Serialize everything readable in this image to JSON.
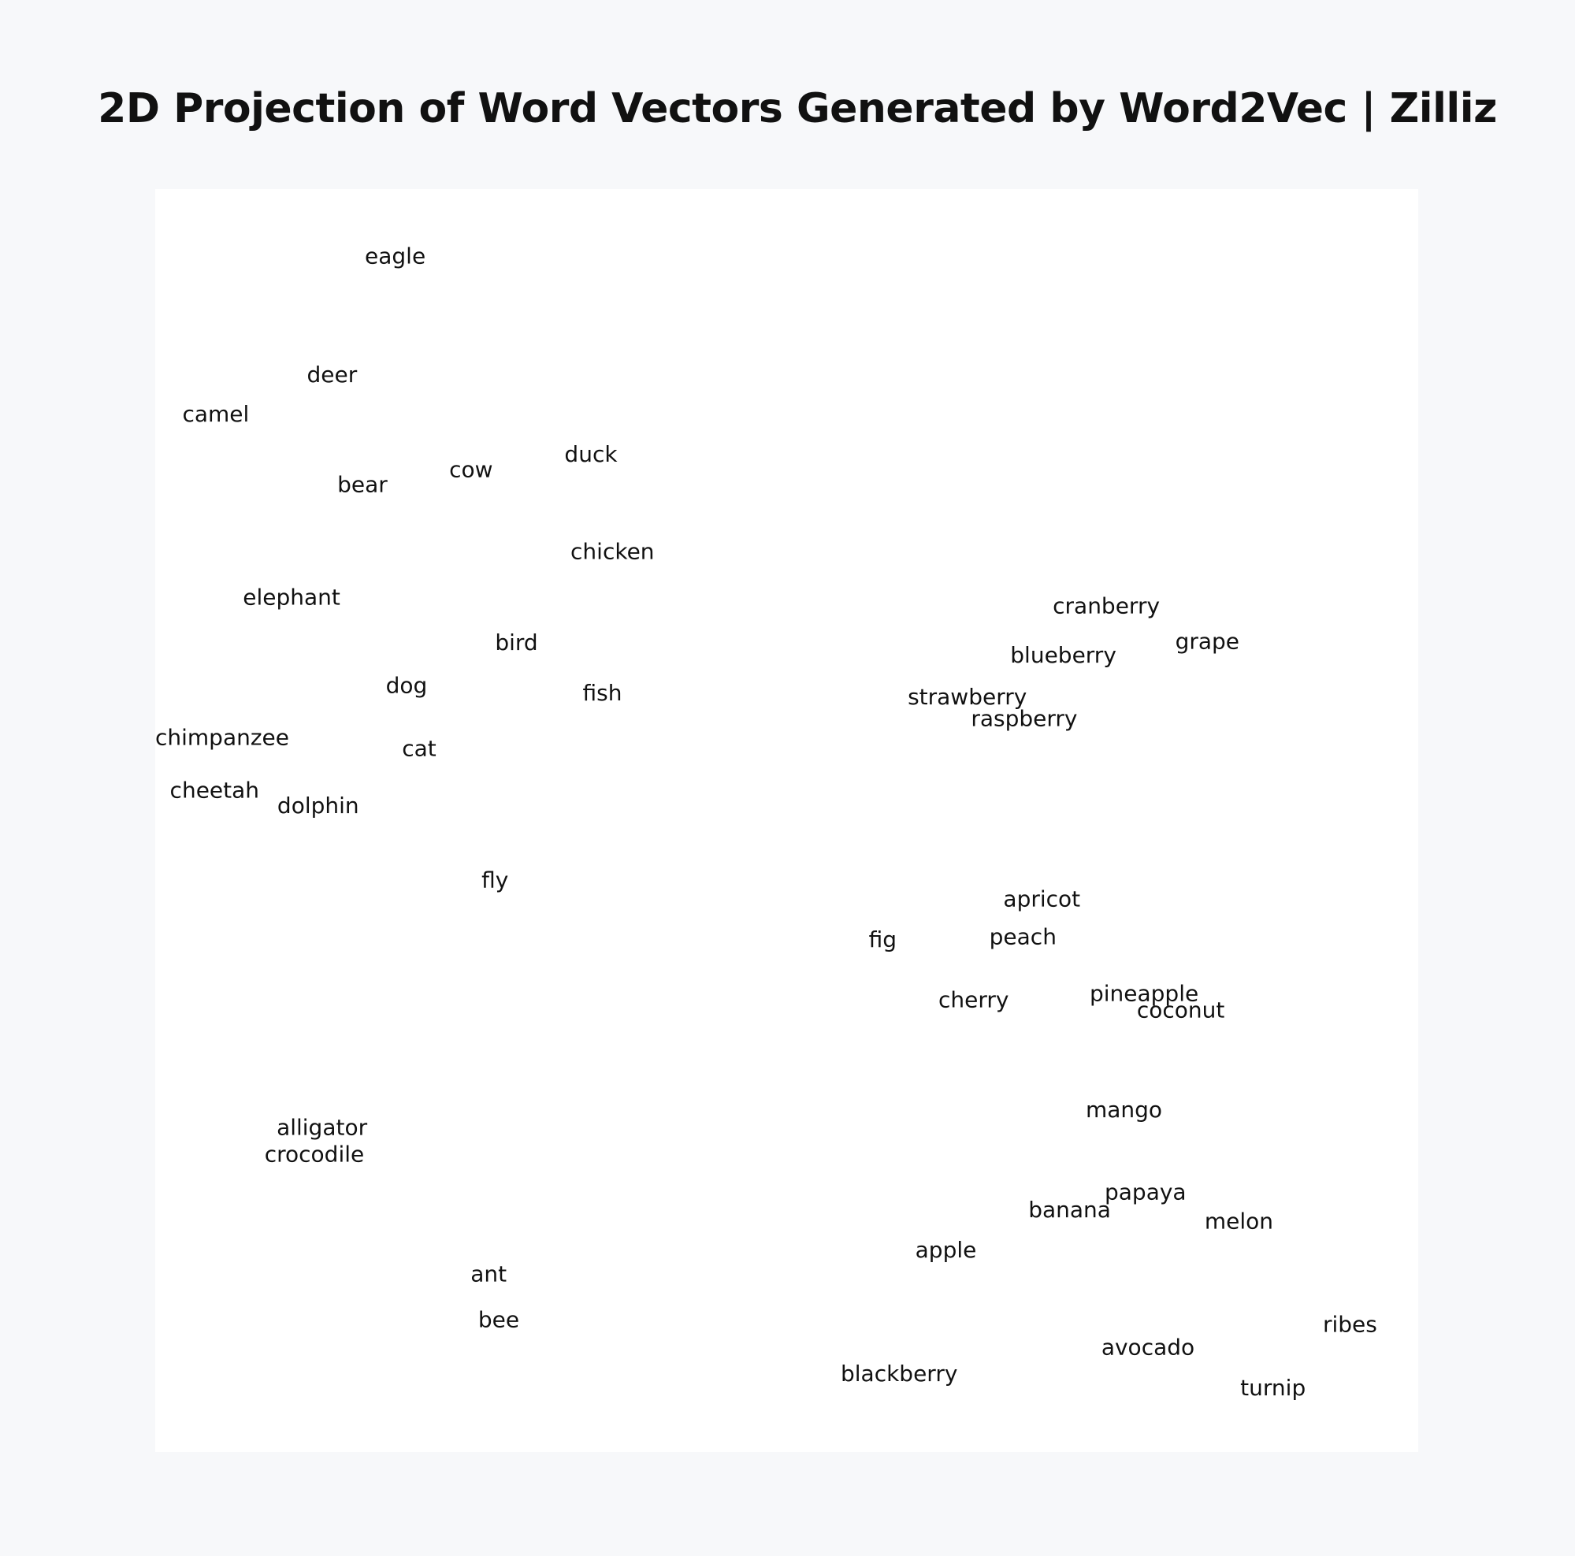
{
  "header": {
    "title": "2D Projection of Word Vectors Generated by Word2Vec | Zilliz"
  },
  "chart_data": {
    "type": "scatter",
    "title": "2D Projection of Word Vectors Generated by Word2Vec | Zilliz",
    "xlabel": "",
    "ylabel": "",
    "xlim": [
      0,
      1
    ],
    "ylim": [
      0,
      1
    ],
    "grid": false,
    "legend": "none",
    "text_color": "#111111",
    "background": "#ffffff",
    "points": [
      {
        "label": "eagle",
        "x": 0.19,
        "y": 0.946
      },
      {
        "label": "deer",
        "x": 0.14,
        "y": 0.852
      },
      {
        "label": "camel",
        "x": 0.048,
        "y": 0.821
      },
      {
        "label": "bear",
        "x": 0.164,
        "y": 0.765
      },
      {
        "label": "cow",
        "x": 0.25,
        "y": 0.777
      },
      {
        "label": "duck",
        "x": 0.345,
        "y": 0.789
      },
      {
        "label": "chicken",
        "x": 0.362,
        "y": 0.712
      },
      {
        "label": "elephant",
        "x": 0.108,
        "y": 0.676
      },
      {
        "label": "bird",
        "x": 0.286,
        "y": 0.64
      },
      {
        "label": "dog",
        "x": 0.199,
        "y": 0.606
      },
      {
        "label": "fish",
        "x": 0.354,
        "y": 0.6
      },
      {
        "label": "chimpanzee",
        "x": 0.053,
        "y": 0.565
      },
      {
        "label": "cat",
        "x": 0.209,
        "y": 0.556
      },
      {
        "label": "cheetah",
        "x": 0.047,
        "y": 0.523
      },
      {
        "label": "dolphin",
        "x": 0.129,
        "y": 0.511
      },
      {
        "label": "fly",
        "x": 0.269,
        "y": 0.452
      },
      {
        "label": "alligator",
        "x": 0.132,
        "y": 0.256
      },
      {
        "label": "crocodile",
        "x": 0.126,
        "y": 0.235
      },
      {
        "label": "ant",
        "x": 0.264,
        "y": 0.14
      },
      {
        "label": "bee",
        "x": 0.272,
        "y": 0.104
      },
      {
        "label": "cranberry",
        "x": 0.753,
        "y": 0.669
      },
      {
        "label": "grape",
        "x": 0.833,
        "y": 0.641
      },
      {
        "label": "blueberry",
        "x": 0.719,
        "y": 0.63
      },
      {
        "label": "strawberry",
        "x": 0.643,
        "y": 0.597
      },
      {
        "label": "raspberry",
        "x": 0.688,
        "y": 0.58
      },
      {
        "label": "apricot",
        "x": 0.702,
        "y": 0.437
      },
      {
        "label": "fig",
        "x": 0.576,
        "y": 0.405
      },
      {
        "label": "peach",
        "x": 0.687,
        "y": 0.407
      },
      {
        "label": "cherry",
        "x": 0.648,
        "y": 0.357
      },
      {
        "label": "pineapple",
        "x": 0.783,
        "y": 0.362
      },
      {
        "label": "coconut",
        "x": 0.812,
        "y": 0.349
      },
      {
        "label": "mango",
        "x": 0.767,
        "y": 0.27
      },
      {
        "label": "papaya",
        "x": 0.784,
        "y": 0.205
      },
      {
        "label": "banana",
        "x": 0.724,
        "y": 0.191
      },
      {
        "label": "melon",
        "x": 0.858,
        "y": 0.182
      },
      {
        "label": "apple",
        "x": 0.626,
        "y": 0.159
      },
      {
        "label": "ribes",
        "x": 0.946,
        "y": 0.1
      },
      {
        "label": "avocado",
        "x": 0.786,
        "y": 0.082
      },
      {
        "label": "blackberry",
        "x": 0.589,
        "y": 0.061
      },
      {
        "label": "turnip",
        "x": 0.885,
        "y": 0.05
      }
    ]
  }
}
